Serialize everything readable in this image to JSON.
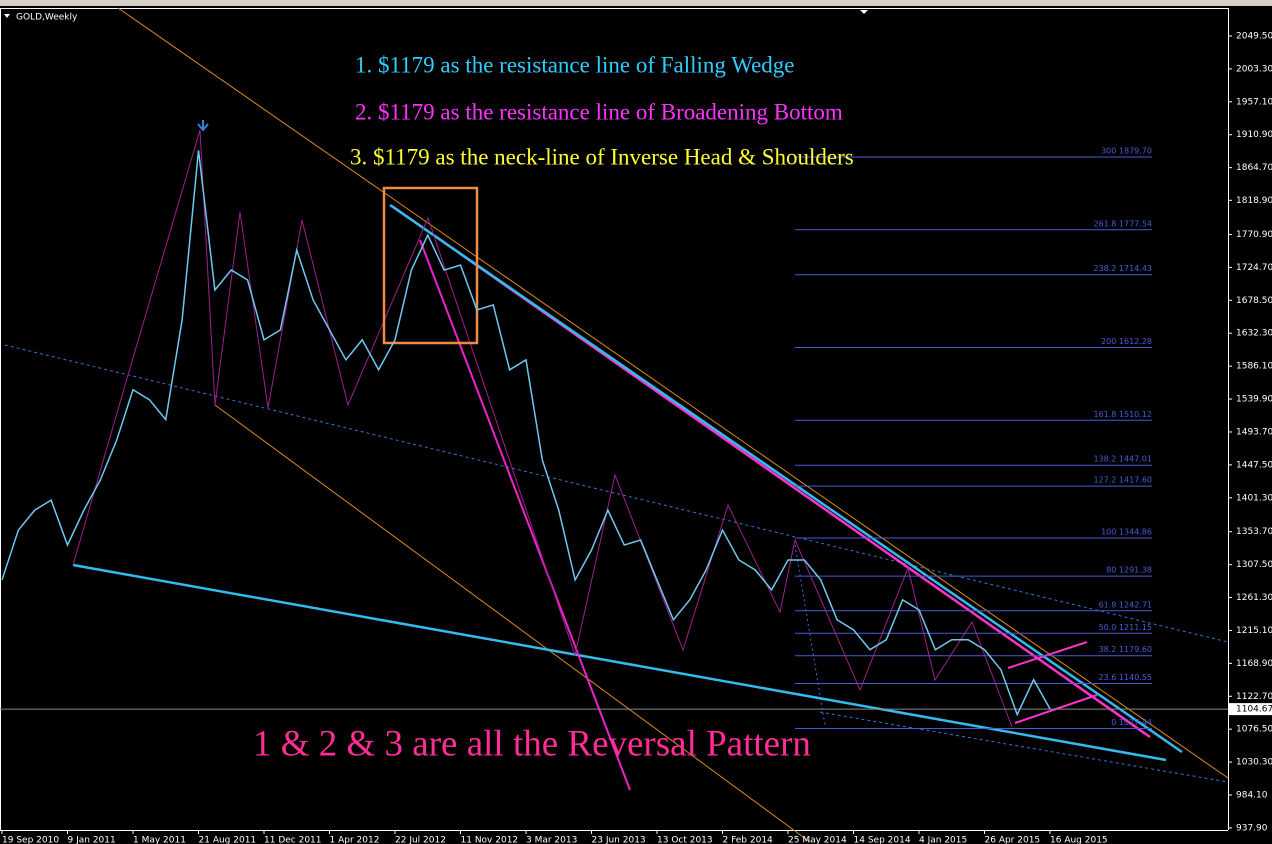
{
  "chart_data": {
    "type": "line",
    "title": "GOLD,Weekly",
    "annotations": [
      "1.    $1179 as the resistance line of Falling Wedge",
      "2.   $1179 as the resistance line of Broadening Bottom",
      "3.   $1179 as the neck-line of Inverse Head & Shoulders",
      "1 & 2 & 3   are all the Reversal Pattern"
    ],
    "annotation_colors": [
      "#33ccff",
      "#ff33ff",
      "#ffff33",
      "#ff2d95"
    ],
    "categories": [
      "19 Sep 2010",
      null,
      null,
      null,
      "9 Jan 2011",
      null,
      null,
      null,
      "1 May 2011",
      null,
      null,
      null,
      "21 Aug 2011",
      null,
      null,
      null,
      "11 Dec 2011",
      null,
      null,
      null,
      "1 Apr 2012",
      null,
      null,
      null,
      "22 Jul 2012",
      null,
      null,
      null,
      "11 Nov 2012",
      null,
      null,
      null,
      "3 Mar 2013",
      null,
      null,
      null,
      "23 Jun 2013",
      null,
      null,
      null,
      "13 Oct 2013",
      null,
      null,
      null,
      "2 Feb 2014",
      null,
      null,
      null,
      "25 May 2014",
      null,
      null,
      null,
      "14 Sep 2014",
      null,
      null,
      null,
      "4 Jan 2015",
      null,
      null,
      null,
      "26 Apr 2015",
      null,
      null,
      null,
      "16 Aug 2015"
    ],
    "series": [
      {
        "name": "GOLD",
        "color": "#6fc8f0",
        "values": [
          1286,
          1356,
          1384,
          1398,
          1335,
          1384,
          1426,
          1482,
          1553,
          1539,
          1511,
          1651,
          1889,
          1693,
          1721,
          1707,
          1623,
          1637,
          1749,
          1679,
          1637,
          1595,
          1623,
          1581,
          1623,
          1721,
          1770,
          1721,
          1728,
          1665,
          1672,
          1581,
          1595,
          1454,
          1384,
          1286,
          1328,
          1384,
          1335,
          1342,
          1286,
          1230,
          1258,
          1300,
          1356,
          1314,
          1300,
          1272,
          1314,
          1314,
          1286,
          1230,
          1216,
          1188,
          1202,
          1258,
          1244,
          1188,
          1202,
          1202,
          1188,
          1160,
          1097,
          1146,
          1105
        ]
      }
    ],
    "current_price": 1104.67,
    "ylim": [
      935,
      2086
    ],
    "yticks": [
      {
        "value": 2049.5,
        "label": "2049.50"
      },
      {
        "value": 2003.3,
        "label": "2003.30"
      },
      {
        "value": 1957.1,
        "label": "1957.10"
      },
      {
        "value": 1910.9,
        "label": "1910.90"
      },
      {
        "value": 1864.7,
        "label": "1864.70"
      },
      {
        "value": 1818.9,
        "label": "1818.90"
      },
      {
        "value": 1770.9,
        "label": "1770.90"
      },
      {
        "value": 1724.7,
        "label": "1724.70"
      },
      {
        "value": 1678.5,
        "label": "1678.50"
      },
      {
        "value": 1632.3,
        "label": "1632.30"
      },
      {
        "value": 1586.1,
        "label": "1586.10"
      },
      {
        "value": 1539.9,
        "label": "1539.90"
      },
      {
        "value": 1493.7,
        "label": "1493.70"
      },
      {
        "value": 1447.5,
        "label": "1447.50"
      },
      {
        "value": 1401.3,
        "label": "1401.30"
      },
      {
        "value": 1353.7,
        "label": "1353.70"
      },
      {
        "value": 1307.5,
        "label": "1307.50"
      },
      {
        "value": 1261.3,
        "label": "1261.30"
      },
      {
        "value": 1215.1,
        "label": "1215.10"
      },
      {
        "value": 1168.9,
        "label": "1168.90"
      },
      {
        "value": 1122.7,
        "label": "1122.70"
      },
      {
        "value": 1076.5,
        "label": "1076.50"
      },
      {
        "value": 1030.3,
        "label": "1030.30"
      },
      {
        "value": 984.1,
        "label": "984.10"
      },
      {
        "value": 937.9,
        "label": "937.90"
      }
    ],
    "fib_levels": [
      {
        "value": 1879.7,
        "label": "300 1879.70"
      },
      {
        "value": 1777.54,
        "label": "261.8 1777.54"
      },
      {
        "value": 1714.43,
        "label": "238.2 1714.43"
      },
      {
        "value": 1612.28,
        "label": "200 1612.28"
      },
      {
        "value": 1510.12,
        "label": "161.8 1510.12"
      },
      {
        "value": 1447.01,
        "label": "138.2 1447.01"
      },
      {
        "value": 1417.6,
        "label": "127.2 1417.60"
      },
      {
        "value": 1344.86,
        "label": "100 1344.86"
      },
      {
        "value": 1291.38,
        "label": "80 1291.38"
      },
      {
        "value": 1242.71,
        "label": "61.8 1242.71"
      },
      {
        "value": 1211.15,
        "label": "50.0 1211.15"
      },
      {
        "value": 1179.6,
        "label": "38.2 1179.60"
      },
      {
        "value": 1140.55,
        "label": "23.6 1140.55"
      },
      {
        "value": 1077.44,
        "label": "0 1077.44"
      }
    ],
    "fib_color": "#4a5bd6"
  }
}
